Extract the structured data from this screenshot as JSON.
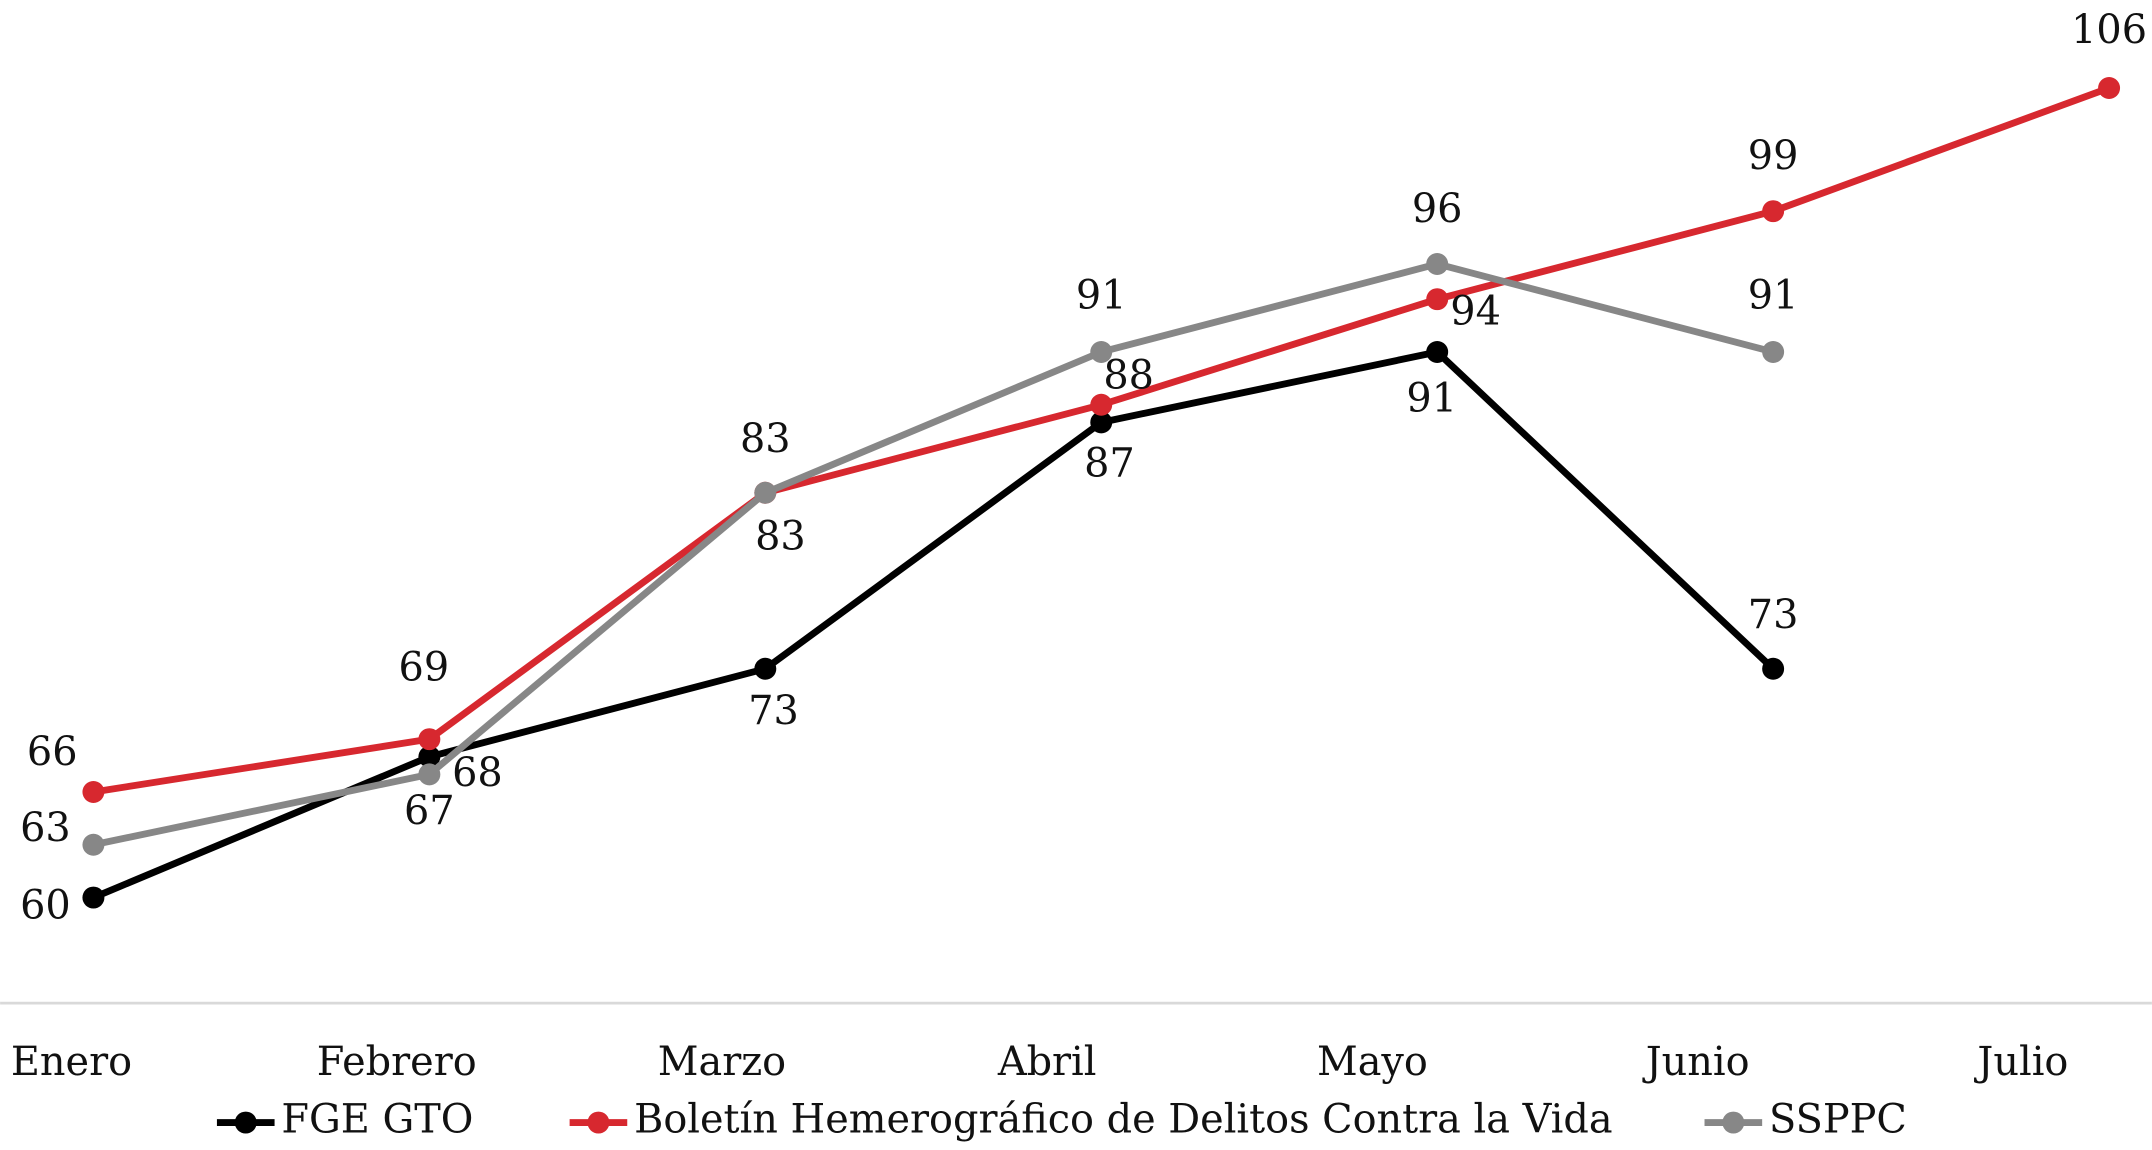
{
  "chart_data": {
    "type": "line",
    "categories": [
      "Enero",
      "Febrero",
      "Marzo",
      "Abril",
      "Mayo",
      "Junio",
      "Julio"
    ],
    "series": [
      {
        "name": "FGE GTO",
        "color": "#000000",
        "values": [
          60,
          68,
          73,
          87,
          91,
          73,
          null
        ]
      },
      {
        "name": "Boletín Hemerográfico de Delitos Contra la Vida",
        "color": "#d7282f",
        "values": [
          66,
          69,
          83,
          88,
          94,
          99,
          106
        ]
      },
      {
        "name": "SSPPC",
        "color": "#878787",
        "values": [
          63,
          67,
          83,
          91,
          96,
          91,
          null
        ]
      }
    ],
    "ylim": [
      54,
      111
    ],
    "legend": "bottom"
  }
}
